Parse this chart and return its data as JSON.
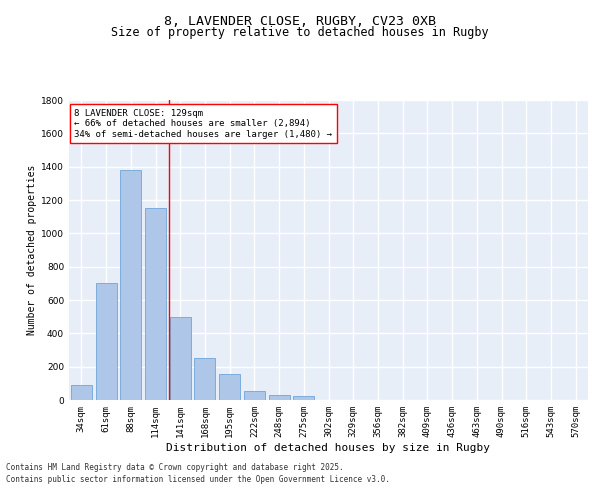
{
  "title_line1": "8, LAVENDER CLOSE, RUGBY, CV23 0XB",
  "title_line2": "Size of property relative to detached houses in Rugby",
  "xlabel": "Distribution of detached houses by size in Rugby",
  "ylabel": "Number of detached properties",
  "categories": [
    "34sqm",
    "61sqm",
    "88sqm",
    "114sqm",
    "141sqm",
    "168sqm",
    "195sqm",
    "222sqm",
    "248sqm",
    "275sqm",
    "302sqm",
    "329sqm",
    "356sqm",
    "382sqm",
    "409sqm",
    "436sqm",
    "463sqm",
    "490sqm",
    "516sqm",
    "543sqm",
    "570sqm"
  ],
  "values": [
    90,
    700,
    1380,
    1150,
    500,
    250,
    155,
    55,
    30,
    25,
    0,
    0,
    0,
    0,
    0,
    0,
    0,
    0,
    0,
    0,
    0
  ],
  "bar_color": "#aec6e8",
  "bar_edge_color": "#5b9bd5",
  "annotation_text": "8 LAVENDER CLOSE: 129sqm\n← 66% of detached houses are smaller (2,894)\n34% of semi-detached houses are larger (1,480) →",
  "annotation_box_color": "white",
  "annotation_box_edge_color": "red",
  "red_line_color": "red",
  "ylim": [
    0,
    1800
  ],
  "yticks": [
    0,
    200,
    400,
    600,
    800,
    1000,
    1200,
    1400,
    1600,
    1800
  ],
  "background_color": "#e8eef8",
  "grid_color": "white",
  "footer_line1": "Contains HM Land Registry data © Crown copyright and database right 2025.",
  "footer_line2": "Contains public sector information licensed under the Open Government Licence v3.0.",
  "title_fontsize": 9.5,
  "subtitle_fontsize": 8.5,
  "annotation_fontsize": 6.5,
  "footer_fontsize": 5.5,
  "ylabel_fontsize": 7,
  "xlabel_fontsize": 8,
  "tick_fontsize": 6.5
}
